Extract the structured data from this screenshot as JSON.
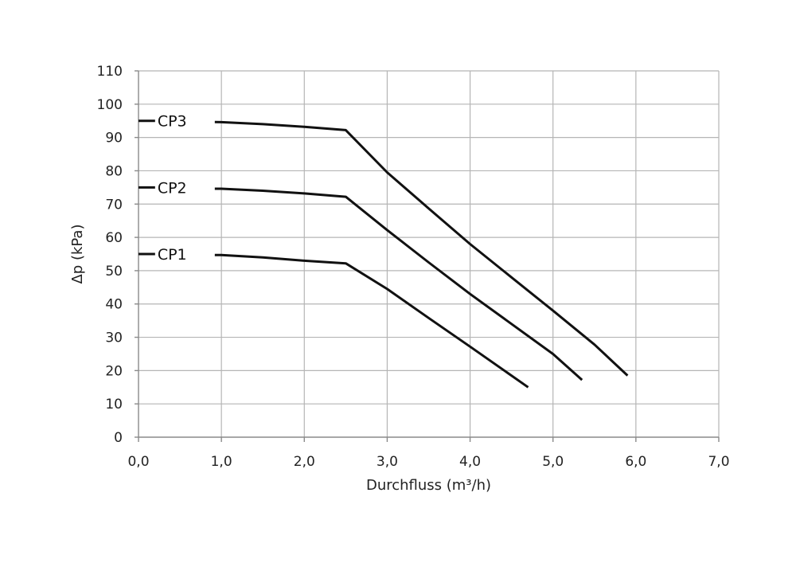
{
  "chart_data": {
    "type": "line",
    "title": "",
    "xlabel": "Durchfluss (m³/h)",
    "ylabel": "Δp (kPa)",
    "xlim": [
      0,
      7
    ],
    "ylim": [
      0,
      110
    ],
    "x_ticks": [
      "0,0",
      "1,0",
      "2,0",
      "3,0",
      "4,0",
      "5,0",
      "6,0",
      "7,0"
    ],
    "y_ticks": [
      "0",
      "10",
      "20",
      "30",
      "40",
      "50",
      "60",
      "70",
      "80",
      "90",
      "100",
      "110"
    ],
    "grid": true,
    "legend": "inline-left",
    "series": [
      {
        "name": "CP1",
        "x": [
          0.0,
          0.2,
          1.0,
          1.5,
          2.0,
          2.5,
          3.0,
          3.5,
          4.0,
          4.7
        ],
        "y": [
          55.0,
          55.0,
          54.7,
          54.0,
          53.0,
          52.2,
          44.5,
          35.8,
          27.2,
          15.0
        ]
      },
      {
        "name": "CP2",
        "x": [
          0.0,
          0.2,
          1.0,
          1.5,
          2.0,
          2.5,
          3.0,
          3.5,
          4.0,
          4.5,
          5.0,
          5.35
        ],
        "y": [
          75.0,
          75.0,
          74.6,
          74.0,
          73.2,
          72.2,
          62.2,
          52.5,
          43.0,
          34.0,
          25.0,
          17.2
        ]
      },
      {
        "name": "CP3",
        "x": [
          0.0,
          0.2,
          1.0,
          1.5,
          2.0,
          2.5,
          3.0,
          3.5,
          4.0,
          4.5,
          5.0,
          5.5,
          5.9
        ],
        "y": [
          95.0,
          95.0,
          94.6,
          94.0,
          93.2,
          92.2,
          79.5,
          68.7,
          58.0,
          48.0,
          38.0,
          27.8,
          18.5
        ]
      }
    ]
  }
}
